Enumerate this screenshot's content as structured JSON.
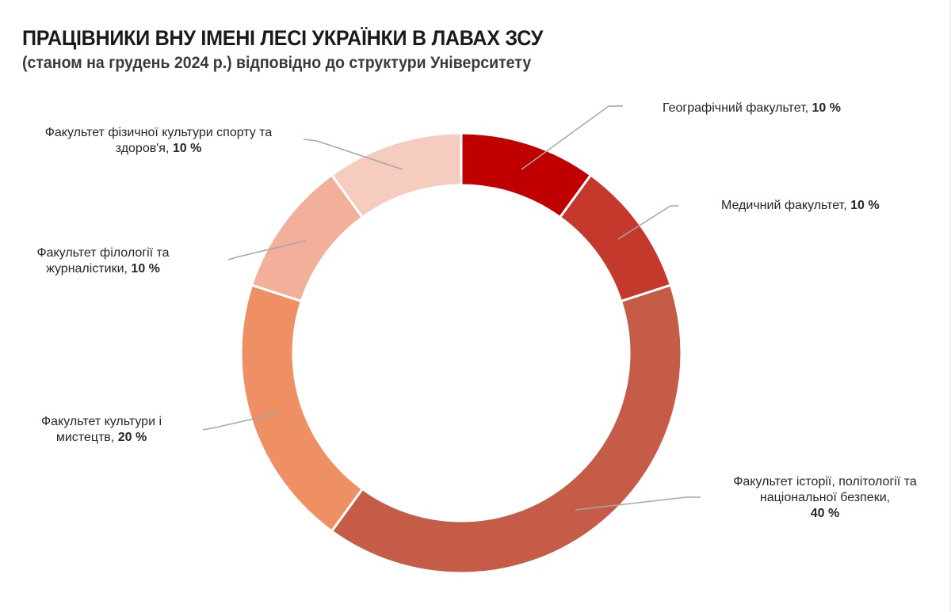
{
  "header": {
    "title": "ПРАЦІВНИКИ ВНУ ІМЕНІ ЛЕСІ УКРАЇНКИ В ЛАВАХ ЗСУ",
    "subtitle": "(станом на грудень 2024 р.) відповідно до структури Університету"
  },
  "labels": {
    "geo": {
      "line1": "Географічний факультет, ",
      "value": "10 %"
    },
    "med": {
      "line1": "Медичний факультет, ",
      "value": "10 %"
    },
    "hist": {
      "line1": "Факультет історії, політології та",
      "line2": "національної безпеки,",
      "value": "40 %"
    },
    "cult": {
      "line1": "Факультет культури і",
      "line2": "мистецтв, ",
      "value": "20 %"
    },
    "phil": {
      "line1": "Факультет філології та",
      "line2": "журналістики, ",
      "value": "10 %"
    },
    "sport": {
      "line1": "Факультет фізичної культури спорту та",
      "line2": "здоров'я, ",
      "value": "10 %"
    }
  },
  "chart_data": {
    "type": "pie",
    "subtype": "doughnut",
    "title": "ПРАЦІВНИКИ ВНУ ІМЕНІ ЛЕСІ УКРАЇНКИ В ЛАВАХ ЗСУ",
    "subtitle": "(станом на грудень 2024 р.) відповідно до структури Університету",
    "categories": [
      "Географічний факультет",
      "Медичний факультет",
      "Факультет історії, політології та національної безпеки",
      "Факультет культури і мистецтв",
      "Факультет філології та журналістики",
      "Факультет фізичної культури спорту та здоров'я"
    ],
    "values": [
      10,
      10,
      40,
      20,
      10,
      10
    ],
    "unit": "%",
    "colors": [
      "#C00000",
      "#C4392B",
      "#C55C47",
      "#EF9064",
      "#F2B09A",
      "#F5CCBE"
    ],
    "start_angle": 0,
    "direction": "clockwise",
    "legend": "none",
    "data_labels": "outside with leader lines"
  }
}
